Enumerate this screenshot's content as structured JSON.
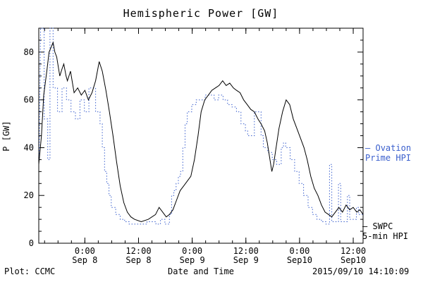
{
  "title": "Hemispheric Power [GW]",
  "footer": {
    "plot_source": "Plot: CCMC",
    "timestamp": "2015/09/10 14:10:09"
  },
  "legend": {
    "ovation": {
      "marker": "–",
      "line1": "Ovation",
      "line2": "Prime HPI",
      "color": "#3a5fcd"
    },
    "swpc": {
      "marker": "–",
      "line1": "SWPC",
      "line2": "5-min HPI",
      "color": "#000000"
    }
  },
  "chart_data": {
    "type": "line",
    "title": "Hemispheric Power [GW]",
    "xlabel": "Date and Time",
    "ylabel": "P [GW]",
    "ylim": [
      0,
      90
    ],
    "xlim_hours": [
      13.7,
      86.2
    ],
    "x_hours_note": "hours since Sep 7 00:00 UT",
    "grid": false,
    "legend_position": "right",
    "x_major_ticks": [
      {
        "h": 24,
        "time": "0:00",
        "date": "Sep 8"
      },
      {
        "h": 36,
        "time": "12:00",
        "date": "Sep 8"
      },
      {
        "h": 48,
        "time": "0:00",
        "date": "Sep 9"
      },
      {
        "h": 60,
        "time": "12:00",
        "date": "Sep 9"
      },
      {
        "h": 72,
        "time": "0:00",
        "date": "Sep10"
      },
      {
        "h": 84,
        "time": "12:00",
        "date": "Sep10"
      }
    ],
    "x_minor_step": 3,
    "y_major_ticks": [
      0,
      20,
      40,
      60,
      80
    ],
    "y_minor_step": 5,
    "series": [
      {
        "name": "Ovation Prime HPI",
        "color": "#3a5fcd",
        "style": "dotted-step",
        "points": [
          [
            13.8,
            35
          ],
          [
            14.1,
            90
          ],
          [
            14.9,
            90
          ],
          [
            14.9,
            52
          ],
          [
            15.7,
            52
          ],
          [
            15.7,
            35
          ],
          [
            16.2,
            35
          ],
          [
            16.2,
            90
          ],
          [
            16.9,
            90
          ],
          [
            16.9,
            65
          ],
          [
            17.9,
            65
          ],
          [
            17.9,
            55
          ],
          [
            18.9,
            55
          ],
          [
            18.9,
            65
          ],
          [
            19.9,
            65
          ],
          [
            19.9,
            60
          ],
          [
            20.9,
            60
          ],
          [
            20.9,
            55
          ],
          [
            21.9,
            55
          ],
          [
            21.9,
            52
          ],
          [
            22.9,
            52
          ],
          [
            22.9,
            60
          ],
          [
            23.9,
            60
          ],
          [
            23.9,
            55
          ],
          [
            24.9,
            55
          ],
          [
            24.9,
            65
          ],
          [
            26.4,
            65
          ],
          [
            26.4,
            55
          ],
          [
            27.4,
            55
          ],
          [
            27.4,
            50
          ],
          [
            27.9,
            50
          ],
          [
            27.9,
            40
          ],
          [
            28.4,
            40
          ],
          [
            28.4,
            30
          ],
          [
            28.9,
            30
          ],
          [
            28.9,
            25
          ],
          [
            29.4,
            25
          ],
          [
            29.4,
            20
          ],
          [
            29.9,
            20
          ],
          [
            29.9,
            15
          ],
          [
            30.9,
            15
          ],
          [
            30.9,
            12
          ],
          [
            31.9,
            12
          ],
          [
            31.9,
            10
          ],
          [
            32.9,
            10
          ],
          [
            32.9,
            9
          ],
          [
            33.9,
            9
          ],
          [
            33.9,
            8
          ],
          [
            37.9,
            8
          ],
          [
            37.9,
            9
          ],
          [
            39.9,
            9
          ],
          [
            39.9,
            8
          ],
          [
            40.9,
            8
          ],
          [
            40.9,
            10
          ],
          [
            41.9,
            10
          ],
          [
            41.9,
            8
          ],
          [
            42.9,
            8
          ],
          [
            42.9,
            12
          ],
          [
            43.4,
            12
          ],
          [
            43.4,
            20
          ],
          [
            43.9,
            20
          ],
          [
            43.9,
            22
          ],
          [
            44.4,
            22
          ],
          [
            44.4,
            25
          ],
          [
            44.9,
            25
          ],
          [
            44.9,
            28
          ],
          [
            45.4,
            28
          ],
          [
            45.4,
            30
          ],
          [
            45.9,
            30
          ],
          [
            45.9,
            40
          ],
          [
            46.4,
            40
          ],
          [
            46.4,
            50
          ],
          [
            46.9,
            50
          ],
          [
            46.9,
            55
          ],
          [
            47.9,
            55
          ],
          [
            47.9,
            58
          ],
          [
            48.9,
            58
          ],
          [
            48.9,
            60
          ],
          [
            50.9,
            60
          ],
          [
            50.9,
            62
          ],
          [
            52.9,
            62
          ],
          [
            52.9,
            60
          ],
          [
            53.9,
            60
          ],
          [
            53.9,
            62
          ],
          [
            54.9,
            62
          ],
          [
            54.9,
            60
          ],
          [
            55.9,
            60
          ],
          [
            55.9,
            58
          ],
          [
            56.9,
            58
          ],
          [
            56.9,
            57
          ],
          [
            57.9,
            57
          ],
          [
            57.9,
            55
          ],
          [
            58.9,
            55
          ],
          [
            58.9,
            50
          ],
          [
            59.9,
            50
          ],
          [
            59.9,
            47
          ],
          [
            60.4,
            47
          ],
          [
            60.4,
            45
          ],
          [
            61.9,
            45
          ],
          [
            61.9,
            55
          ],
          [
            63.4,
            55
          ],
          [
            63.4,
            45
          ],
          [
            63.9,
            45
          ],
          [
            63.9,
            40
          ],
          [
            64.9,
            40
          ],
          [
            64.9,
            38
          ],
          [
            65.9,
            38
          ],
          [
            65.9,
            35
          ],
          [
            66.9,
            35
          ],
          [
            66.9,
            33
          ],
          [
            67.9,
            33
          ],
          [
            67.9,
            40
          ],
          [
            68.4,
            40
          ],
          [
            68.4,
            42
          ],
          [
            68.9,
            42
          ],
          [
            68.9,
            40
          ],
          [
            69.9,
            40
          ],
          [
            69.9,
            35
          ],
          [
            70.9,
            35
          ],
          [
            70.9,
            30
          ],
          [
            71.9,
            30
          ],
          [
            71.9,
            25
          ],
          [
            72.9,
            25
          ],
          [
            72.9,
            20
          ],
          [
            73.9,
            20
          ],
          [
            73.9,
            15
          ],
          [
            74.9,
            15
          ],
          [
            74.9,
            12
          ],
          [
            75.9,
            12
          ],
          [
            75.9,
            10
          ],
          [
            76.9,
            10
          ],
          [
            76.9,
            9
          ],
          [
            77.9,
            9
          ],
          [
            77.9,
            8
          ],
          [
            78.7,
            8
          ],
          [
            78.7,
            33
          ],
          [
            79.2,
            33
          ],
          [
            79.2,
            9
          ],
          [
            80.7,
            9
          ],
          [
            80.7,
            25
          ],
          [
            81.2,
            25
          ],
          [
            81.2,
            9
          ],
          [
            82.7,
            9
          ],
          [
            82.7,
            20
          ],
          [
            83.2,
            20
          ],
          [
            83.2,
            10
          ],
          [
            84.7,
            10
          ],
          [
            84.7,
            15
          ],
          [
            85.2,
            15
          ],
          [
            85.2,
            12
          ],
          [
            86.2,
            12
          ]
        ]
      },
      {
        "name": "SWPC 5-min HPI",
        "color": "#000000",
        "style": "solid",
        "points": [
          [
            13.7,
            33
          ],
          [
            14.3,
            45
          ],
          [
            14.8,
            62
          ],
          [
            15.5,
            72
          ],
          [
            16.0,
            80
          ],
          [
            16.9,
            84
          ],
          [
            17.3,
            80
          ],
          [
            17.7,
            78
          ],
          [
            18.4,
            70
          ],
          [
            18.9,
            73
          ],
          [
            19.3,
            75
          ],
          [
            19.8,
            70
          ],
          [
            20.1,
            68
          ],
          [
            20.8,
            72
          ],
          [
            21.6,
            63
          ],
          [
            22.4,
            65
          ],
          [
            23.2,
            62
          ],
          [
            24.0,
            64
          ],
          [
            24.8,
            60
          ],
          [
            25.6,
            63
          ],
          [
            26.4,
            68
          ],
          [
            27.2,
            76
          ],
          [
            27.9,
            72
          ],
          [
            28.7,
            64
          ],
          [
            29.5,
            55
          ],
          [
            30.3,
            45
          ],
          [
            31.1,
            34
          ],
          [
            31.9,
            24
          ],
          [
            32.7,
            17
          ],
          [
            33.5,
            13
          ],
          [
            34.3,
            11
          ],
          [
            35.1,
            10
          ],
          [
            36.6,
            9
          ],
          [
            38.2,
            10
          ],
          [
            39.8,
            12
          ],
          [
            40.6,
            15
          ],
          [
            41.4,
            13
          ],
          [
            42.2,
            11
          ],
          [
            42.9,
            12
          ],
          [
            43.7,
            14
          ],
          [
            44.5,
            18
          ],
          [
            45.3,
            22
          ],
          [
            46.1,
            24
          ],
          [
            46.9,
            26
          ],
          [
            47.7,
            28
          ],
          [
            48.5,
            35
          ],
          [
            49.3,
            45
          ],
          [
            50.0,
            55
          ],
          [
            50.8,
            60
          ],
          [
            51.6,
            62
          ],
          [
            52.4,
            64
          ],
          [
            53.2,
            65
          ],
          [
            54.0,
            66
          ],
          [
            54.8,
            68
          ],
          [
            55.6,
            66
          ],
          [
            56.4,
            67
          ],
          [
            57.2,
            65
          ],
          [
            57.9,
            64
          ],
          [
            58.7,
            63
          ],
          [
            59.5,
            60
          ],
          [
            60.3,
            58
          ],
          [
            61.1,
            56
          ],
          [
            61.9,
            55
          ],
          [
            62.7,
            52
          ],
          [
            63.4,
            50
          ],
          [
            64.2,
            47
          ],
          [
            64.8,
            42
          ],
          [
            65.3,
            36
          ],
          [
            65.8,
            30
          ],
          [
            66.2,
            33
          ],
          [
            66.6,
            38
          ],
          [
            67.4,
            48
          ],
          [
            68.2,
            55
          ],
          [
            69.0,
            60
          ],
          [
            69.8,
            58
          ],
          [
            70.6,
            52
          ],
          [
            71.4,
            48
          ],
          [
            72.2,
            44
          ],
          [
            73.0,
            40
          ],
          [
            73.7,
            35
          ],
          [
            74.5,
            28
          ],
          [
            75.3,
            23
          ],
          [
            76.1,
            20
          ],
          [
            76.9,
            16
          ],
          [
            77.7,
            13
          ],
          [
            78.5,
            12
          ],
          [
            79.2,
            11
          ],
          [
            80.0,
            13
          ],
          [
            80.8,
            15
          ],
          [
            81.6,
            13
          ],
          [
            82.4,
            16
          ],
          [
            83.2,
            14
          ],
          [
            84.0,
            15
          ],
          [
            84.8,
            13
          ],
          [
            85.5,
            14
          ],
          [
            86.2,
            12
          ]
        ]
      }
    ]
  }
}
